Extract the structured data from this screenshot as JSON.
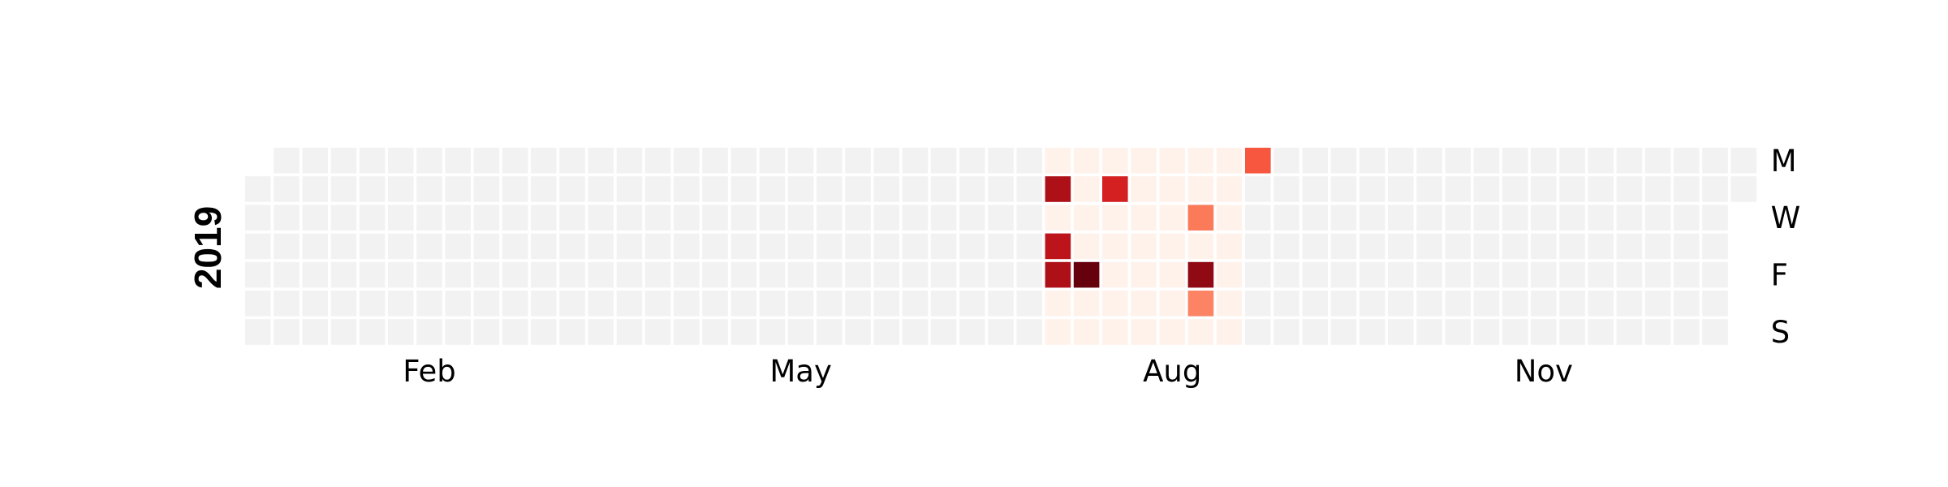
{
  "chart_data": {
    "type": "heatmap",
    "title": "",
    "year": "2019",
    "start_date": "2019-01-01",
    "end_date": "2019-12-31",
    "week_start": "Monday",
    "month_tick_labels": [
      "Feb",
      "May",
      "Aug",
      "Nov"
    ],
    "month_tick_months": [
      2,
      5,
      8,
      11
    ],
    "weekday_tick_labels": [
      "M",
      "W",
      "F",
      "S"
    ],
    "weekday_tick_rows": [
      0,
      2,
      4,
      6
    ],
    "colormap": "Reds",
    "colors": {
      "empty": "#f2f2f2",
      "scale": [
        "#fff5f0",
        "#fee0d2",
        "#fcbba1",
        "#fc9272",
        "#fb6a4a",
        "#ef3b2c",
        "#cb181d",
        "#a50f15",
        "#67000d"
      ]
    },
    "value_range": [
      0,
      1
    ],
    "active_period": {
      "start": "2019-07-15",
      "end": "2019-09-01",
      "baseline_value": 0.02
    },
    "values": [
      {
        "date": "2019-07-16",
        "value": 0.85
      },
      {
        "date": "2019-07-18",
        "value": 0.8
      },
      {
        "date": "2019-07-19",
        "value": 0.85
      },
      {
        "date": "2019-07-26",
        "value": 1.0
      },
      {
        "date": "2019-07-30",
        "value": 0.72
      },
      {
        "date": "2019-08-21",
        "value": 0.45
      },
      {
        "date": "2019-08-23",
        "value": 0.92
      },
      {
        "date": "2019-08-24",
        "value": 0.42
      },
      {
        "date": "2019-09-02",
        "value": 0.55
      }
    ]
  }
}
